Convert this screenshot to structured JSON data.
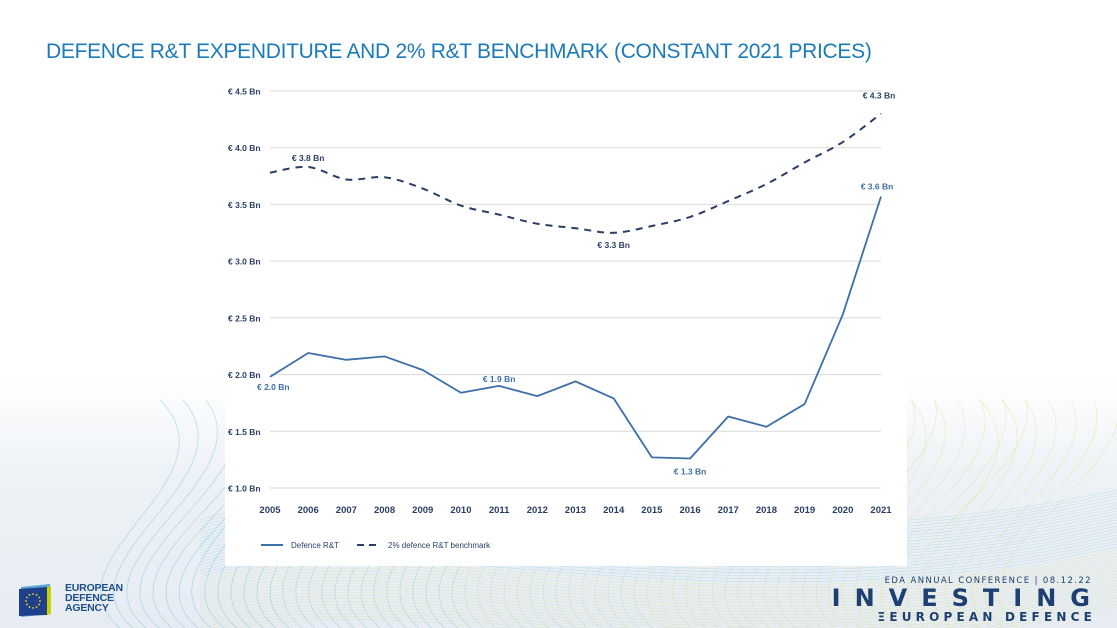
{
  "slide": {
    "title": "DEFENCE R&T EXPENDITURE AND 2% R&T BENCHMARK (CONSTANT 2021 PRICES)"
  },
  "footer": {
    "logo_lines": [
      "EUROPEAN",
      "DEFENCE",
      "AGENCY"
    ],
    "conference_line": "EDA ANNUAL CONFERENCE | 08.12.22",
    "conference_title": "INVESTING",
    "conference_subtitle": "ΞEUROPEAN DEFENCE"
  },
  "colors": {
    "title_blue": "#1b7ab8",
    "rt_line": "#3d6fa8",
    "benchmark_line": "#2c3e66",
    "axis_text": "#2c3e66",
    "grid": "#d9d9d9"
  },
  "chart_data": {
    "type": "line",
    "title": "DEFENCE R&T EXPENDITURE AND 2% R&T BENCHMARK (CONSTANT 2021 PRICES)",
    "xlabel": "",
    "ylabel": "",
    "x": [
      2005,
      2006,
      2007,
      2008,
      2009,
      2010,
      2011,
      2012,
      2013,
      2014,
      2015,
      2016,
      2017,
      2018,
      2019,
      2020,
      2021
    ],
    "x_tick_labels": [
      "2005",
      "2006",
      "2007",
      "2008",
      "2009",
      "2010",
      "2011",
      "2012",
      "2013",
      "2014",
      "2015",
      "2016",
      "2017",
      "2018",
      "2019",
      "2020",
      "2021"
    ],
    "ylim": [
      1.0,
      4.5
    ],
    "y_ticks": [
      1.0,
      1.5,
      2.0,
      2.5,
      3.0,
      3.5,
      4.0,
      4.5
    ],
    "y_tick_labels": [
      "€ 1.0 Bn",
      "€ 1.5 Bn",
      "€ 2.0 Bn",
      "€ 2.5 Bn",
      "€ 3.0 Bn",
      "€ 3.5 Bn",
      "€ 4.0 Bn",
      "€ 4.5 Bn"
    ],
    "grid": true,
    "legend_position": "bottom-left",
    "series": [
      {
        "name": "Defence R&T",
        "style": "solid",
        "values": [
          1.98,
          2.19,
          2.13,
          2.16,
          2.04,
          1.84,
          1.9,
          1.81,
          1.94,
          1.79,
          1.27,
          1.26,
          1.63,
          1.54,
          1.74,
          2.53,
          3.57
        ]
      },
      {
        "name": "2% defence R&T benchmark",
        "style": "dashed",
        "values": [
          3.78,
          3.83,
          3.72,
          3.74,
          3.64,
          3.49,
          3.41,
          3.33,
          3.29,
          3.25,
          3.31,
          3.39,
          3.53,
          3.68,
          3.87,
          4.05,
          4.3
        ]
      }
    ],
    "annotations": [
      {
        "series": 0,
        "x": 2005,
        "text": "€ 2.0 Bn",
        "placement": "below"
      },
      {
        "series": 0,
        "x": 2011,
        "text": "€ 1.9 Bn",
        "placement": "above"
      },
      {
        "series": 0,
        "x": 2016,
        "text": "€ 1.3 Bn",
        "placement": "below"
      },
      {
        "series": 0,
        "x": 2021,
        "text": "€ 3.6 Bn",
        "placement": "above"
      },
      {
        "series": 1,
        "x": 2006,
        "text": "€ 3.8 Bn",
        "placement": "above"
      },
      {
        "series": 1,
        "x": 2014,
        "text": "€ 3.3 Bn",
        "placement": "below"
      },
      {
        "series": 1,
        "x": 2021,
        "text": "€ 4.3 Bn",
        "placement": "above"
      }
    ]
  }
}
